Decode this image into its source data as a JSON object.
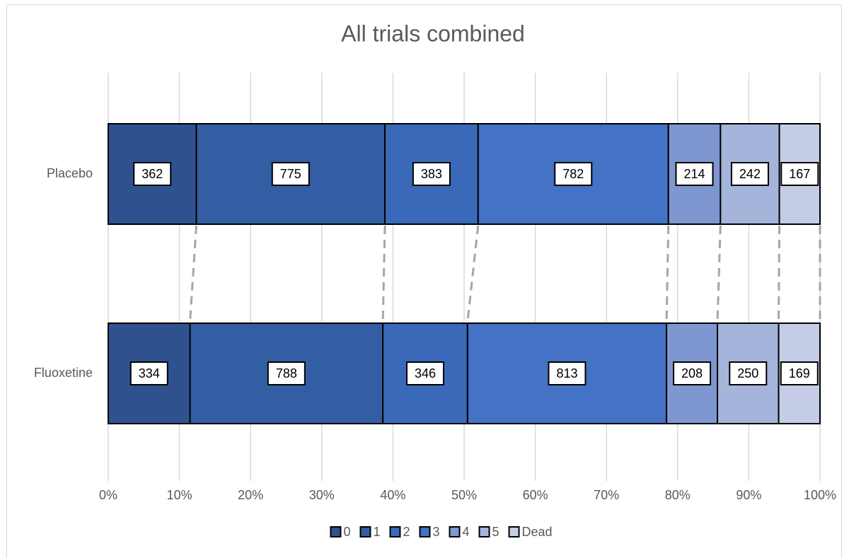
{
  "chart_data": {
    "type": "bar",
    "orientation": "horizontal",
    "stacking": "percent",
    "title": "All trials combined",
    "categories": [
      "Placebo",
      "Fluoxetine"
    ],
    "series": [
      {
        "name": "0",
        "color": "#2f528f",
        "values": [
          362,
          334
        ]
      },
      {
        "name": "1",
        "color": "#345ea3",
        "values": [
          775,
          788
        ]
      },
      {
        "name": "2",
        "color": "#3b69b9",
        "values": [
          383,
          346
        ]
      },
      {
        "name": "3",
        "color": "#4472c4",
        "values": [
          782,
          813
        ]
      },
      {
        "name": "4",
        "color": "#7f97d1",
        "values": [
          214,
          208
        ]
      },
      {
        "name": "5",
        "color": "#a5b4da",
        "values": [
          242,
          250
        ]
      },
      {
        "name": "Dead",
        "color": "#c5cde6",
        "values": [
          167,
          169
        ]
      }
    ],
    "xlim": [
      0,
      100
    ],
    "xticks": [
      {
        "value": 0,
        "label": "0%"
      },
      {
        "value": 10,
        "label": "10%"
      },
      {
        "value": 20,
        "label": "20%"
      },
      {
        "value": 30,
        "label": "30%"
      },
      {
        "value": 40,
        "label": "40%"
      },
      {
        "value": 50,
        "label": "50%"
      },
      {
        "value": 60,
        "label": "60%"
      },
      {
        "value": 70,
        "label": "70%"
      },
      {
        "value": 80,
        "label": "80%"
      },
      {
        "value": 90,
        "label": "90%"
      },
      {
        "value": 100,
        "label": "100%"
      }
    ],
    "grid": true,
    "legend": "bottom"
  }
}
